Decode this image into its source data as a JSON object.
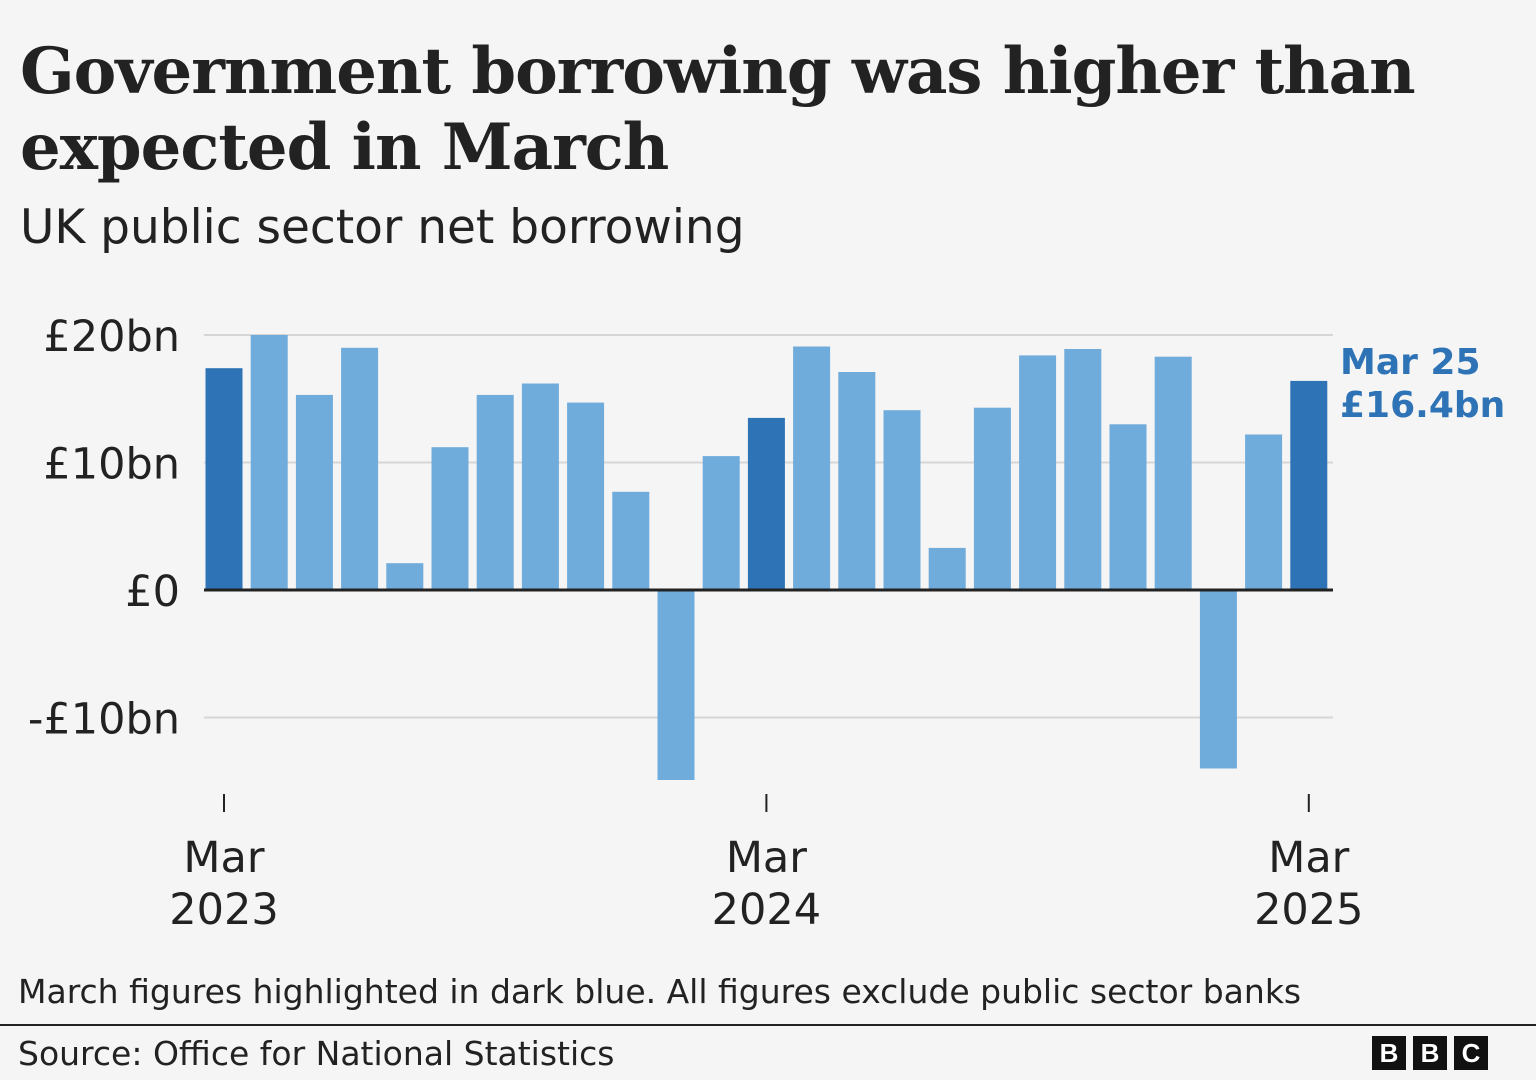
{
  "header": {
    "title": "Government borrowing was higher than expected in March",
    "subtitle": "UK public sector net borrowing"
  },
  "footer": {
    "note": "March figures highlighted in dark blue. All figures exclude public sector banks",
    "source": "Source: Office for National Statistics",
    "logo_letters": [
      "B",
      "B",
      "C"
    ]
  },
  "colors": {
    "bar": "#6fabdb",
    "bar_march": "#2e73b5",
    "callout": "#2e73b5",
    "grid": "#d6d6d6",
    "zero_line": "#222222",
    "text": "#222222"
  },
  "chart_data": {
    "type": "bar",
    "title": "Government borrowing was higher than expected in March",
    "subtitle": "UK public sector net borrowing",
    "xlabel": "",
    "ylabel": "",
    "ylim": [
      -15,
      20
    ],
    "grid": true,
    "categories": [
      "Mar 2023",
      "Apr 2023",
      "May 2023",
      "Jun 2023",
      "Jul 2023",
      "Aug 2023",
      "Sep 2023",
      "Oct 2023",
      "Nov 2023",
      "Dec 2023",
      "Jan 2024",
      "Feb 2024",
      "Mar 2024",
      "Apr 2024",
      "May 2024",
      "Jun 2024",
      "Jul 2024",
      "Aug 2024",
      "Sep 2024",
      "Oct 2024",
      "Nov 2024",
      "Dec 2024",
      "Jan 2025",
      "Feb 2025",
      "Mar 2025"
    ],
    "values": [
      17.4,
      20.0,
      15.3,
      19.0,
      2.1,
      11.2,
      15.3,
      16.2,
      14.7,
      7.7,
      -14.9,
      10.5,
      13.5,
      19.1,
      17.1,
      14.1,
      3.3,
      14.3,
      18.4,
      18.9,
      13.0,
      18.3,
      -14.0,
      12.2,
      16.4
    ],
    "highlight": [
      true,
      false,
      false,
      false,
      false,
      false,
      false,
      false,
      false,
      false,
      false,
      false,
      true,
      false,
      false,
      false,
      false,
      false,
      false,
      false,
      false,
      false,
      false,
      false,
      true
    ],
    "y_ticks": [
      {
        "value": 20,
        "label": "£20bn"
      },
      {
        "value": 10,
        "label": "£10bn"
      },
      {
        "value": 0,
        "label": "£0"
      },
      {
        "value": -10,
        "label": "-£10bn"
      }
    ],
    "x_ticks": [
      {
        "index": 0,
        "month": "Mar",
        "year": "2023"
      },
      {
        "index": 12,
        "month": "Mar",
        "year": "2024"
      },
      {
        "index": 24,
        "month": "Mar",
        "year": "2025"
      }
    ],
    "annotation": {
      "index": 24,
      "line1": "Mar 25",
      "line2": "£16.4bn"
    }
  }
}
